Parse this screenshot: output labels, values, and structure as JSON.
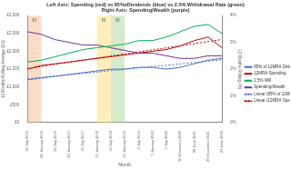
{
  "chart_data": {
    "type": "line",
    "title": [
      "Left Axis: Spending (red) vs 85%xDividends (blue) vs 2.5% Withdrawal Rate (green)",
      "Right Axis: Spending/Wealth (purple)"
    ],
    "x_label": "Month",
    "y_label": "12 Months Rolling Average (£'s)",
    "y2_label": "12 Months Rolling (%)",
    "categories": [
      "30 July 2015",
      "26 January 2016",
      "24 July 2016",
      "20 January 2017",
      "19 July 2017",
      "15 January 2018",
      "14 July 2018",
      "10 January 2019",
      "9 July 2019",
      "5 January 2020",
      "3 July 2020",
      "30 December 2020",
      "28 June 2021",
      "25 December 2021",
      "23 June 2022"
    ],
    "series": [
      {
        "name": "85% of 12MRA Dividends",
        "color": "#4472c4",
        "values": [
          1200,
          1250,
          1300,
          1350,
          1400,
          1450,
          1500,
          1500,
          1550,
          1550,
          1500,
          1550,
          1650,
          1750,
          1800
        ]
      },
      {
        "name": "12MRA Spending",
        "color": "#c00000",
        "values": [
          1500,
          1600,
          1650,
          1700,
          1750,
          1800,
          1850,
          1900,
          1950,
          2000,
          2050,
          2150,
          2300,
          2400,
          2100
        ]
      },
      {
        "name": "2.5% WR",
        "color": "#00b050",
        "values": [
          1700,
          1750,
          1850,
          1950,
          2050,
          2100,
          2150,
          2200,
          2300,
          2300,
          2400,
          2550,
          2700,
          2750,
          2500
        ]
      },
      {
        "name": "Spending/Wealth",
        "color": "#7030a0",
        "axis": "y2",
        "values": [
          3.4,
          3.3,
          3.1,
          3.0,
          2.9,
          2.9,
          2.8,
          2.7,
          2.6,
          2.6,
          2.5,
          2.4,
          2.4,
          2.5,
          2.5
        ]
      },
      {
        "name": "Linear (85% of 12MRA Dividends)",
        "color": "#4472c4",
        "line_style": "dotted",
        "values": [
          1230,
          null,
          null,
          null,
          null,
          null,
          null,
          null,
          null,
          null,
          null,
          null,
          null,
          null,
          1760
        ]
      },
      {
        "name": "Linear (12MRA Spending)",
        "color": "#c00000",
        "line_style": "dotted",
        "values": [
          1520,
          null,
          null,
          null,
          null,
          null,
          null,
          null,
          null,
          null,
          null,
          null,
          null,
          null,
          2330
        ]
      }
    ],
    "bands": [
      {
        "start": "30 July 2015",
        "end": "26 January 2016",
        "label": "FI",
        "color": "#f4b183"
      },
      {
        "start": "15 January 2018",
        "end": "14 July 2018",
        "label": "FI",
        "color": "#ffd966"
      },
      {
        "start": "14 July 2018",
        "end": "10 January 2019",
        "label": "FI",
        "color": "#a9d18e"
      }
    ],
    "ylim": [
      0,
      3000
    ],
    "yticks": [
      {
        "value": 0,
        "label": "£0"
      },
      {
        "value": 500,
        "label": "£500"
      },
      {
        "value": 1000,
        "label": "£1,000"
      },
      {
        "value": 1500,
        "label": "£1,500"
      },
      {
        "value": 2000,
        "label": "£2,000"
      },
      {
        "value": 2500,
        "label": "£2,500"
      },
      {
        "value": 3000,
        "label": "£3,000"
      }
    ],
    "y2lim": [
      0,
      4
    ],
    "y2ticks": [
      {
        "value": 0,
        "label": "0%"
      },
      {
        "value": 1,
        "label": "1%"
      },
      {
        "value": 2,
        "label": "2%"
      },
      {
        "value": 3,
        "label": "3%"
      },
      {
        "value": 4,
        "label": "4%"
      }
    ],
    "grid": false,
    "legend": "right"
  }
}
